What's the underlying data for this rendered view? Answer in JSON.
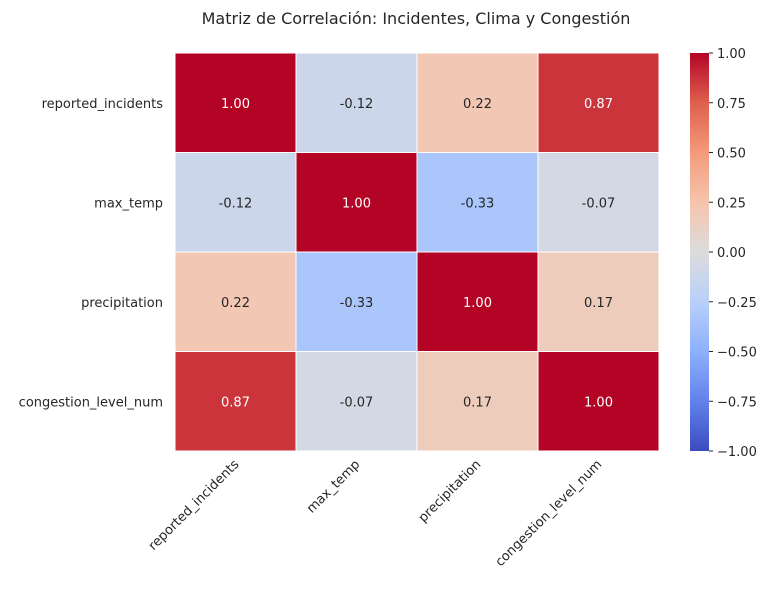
{
  "chart_data": {
    "type": "heatmap",
    "title": "Matriz de Correlación: Incidentes, Clima y Congestión",
    "rows": [
      "reported_incidents",
      "max_temp",
      "precipitation",
      "congestion_level_num"
    ],
    "columns": [
      "reported_incidents",
      "max_temp",
      "precipitation",
      "congestion_level_num"
    ],
    "values": [
      [
        1.0,
        -0.12,
        0.22,
        0.87
      ],
      [
        -0.12,
        1.0,
        -0.33,
        -0.07
      ],
      [
        0.22,
        -0.33,
        1.0,
        0.17
      ],
      [
        0.87,
        -0.07,
        0.17,
        1.0
      ]
    ],
    "cell_labels": [
      [
        "1.00",
        "-0.12",
        "0.22",
        "0.87"
      ],
      [
        "-0.12",
        "1.00",
        "-0.33",
        "-0.07"
      ],
      [
        "0.22",
        "-0.33",
        "1.00",
        "0.17"
      ],
      [
        "0.87",
        "-0.07",
        "0.17",
        "1.00"
      ]
    ],
    "colormap": "coolwarm",
    "vmin": -1.0,
    "vmax": 1.0,
    "colorbar_ticks": [
      1.0,
      0.75,
      0.5,
      0.25,
      0.0,
      -0.25,
      -0.5,
      -0.75,
      -1.0
    ],
    "colorbar_tick_labels": [
      "1.00",
      "0.75",
      "0.50",
      "0.25",
      "0.00",
      "−0.25",
      "−0.50",
      "−0.75",
      "−1.00"
    ],
    "colormap_colors": [
      "#3b4cc0",
      "#dddcdc",
      "#b40426"
    ]
  }
}
